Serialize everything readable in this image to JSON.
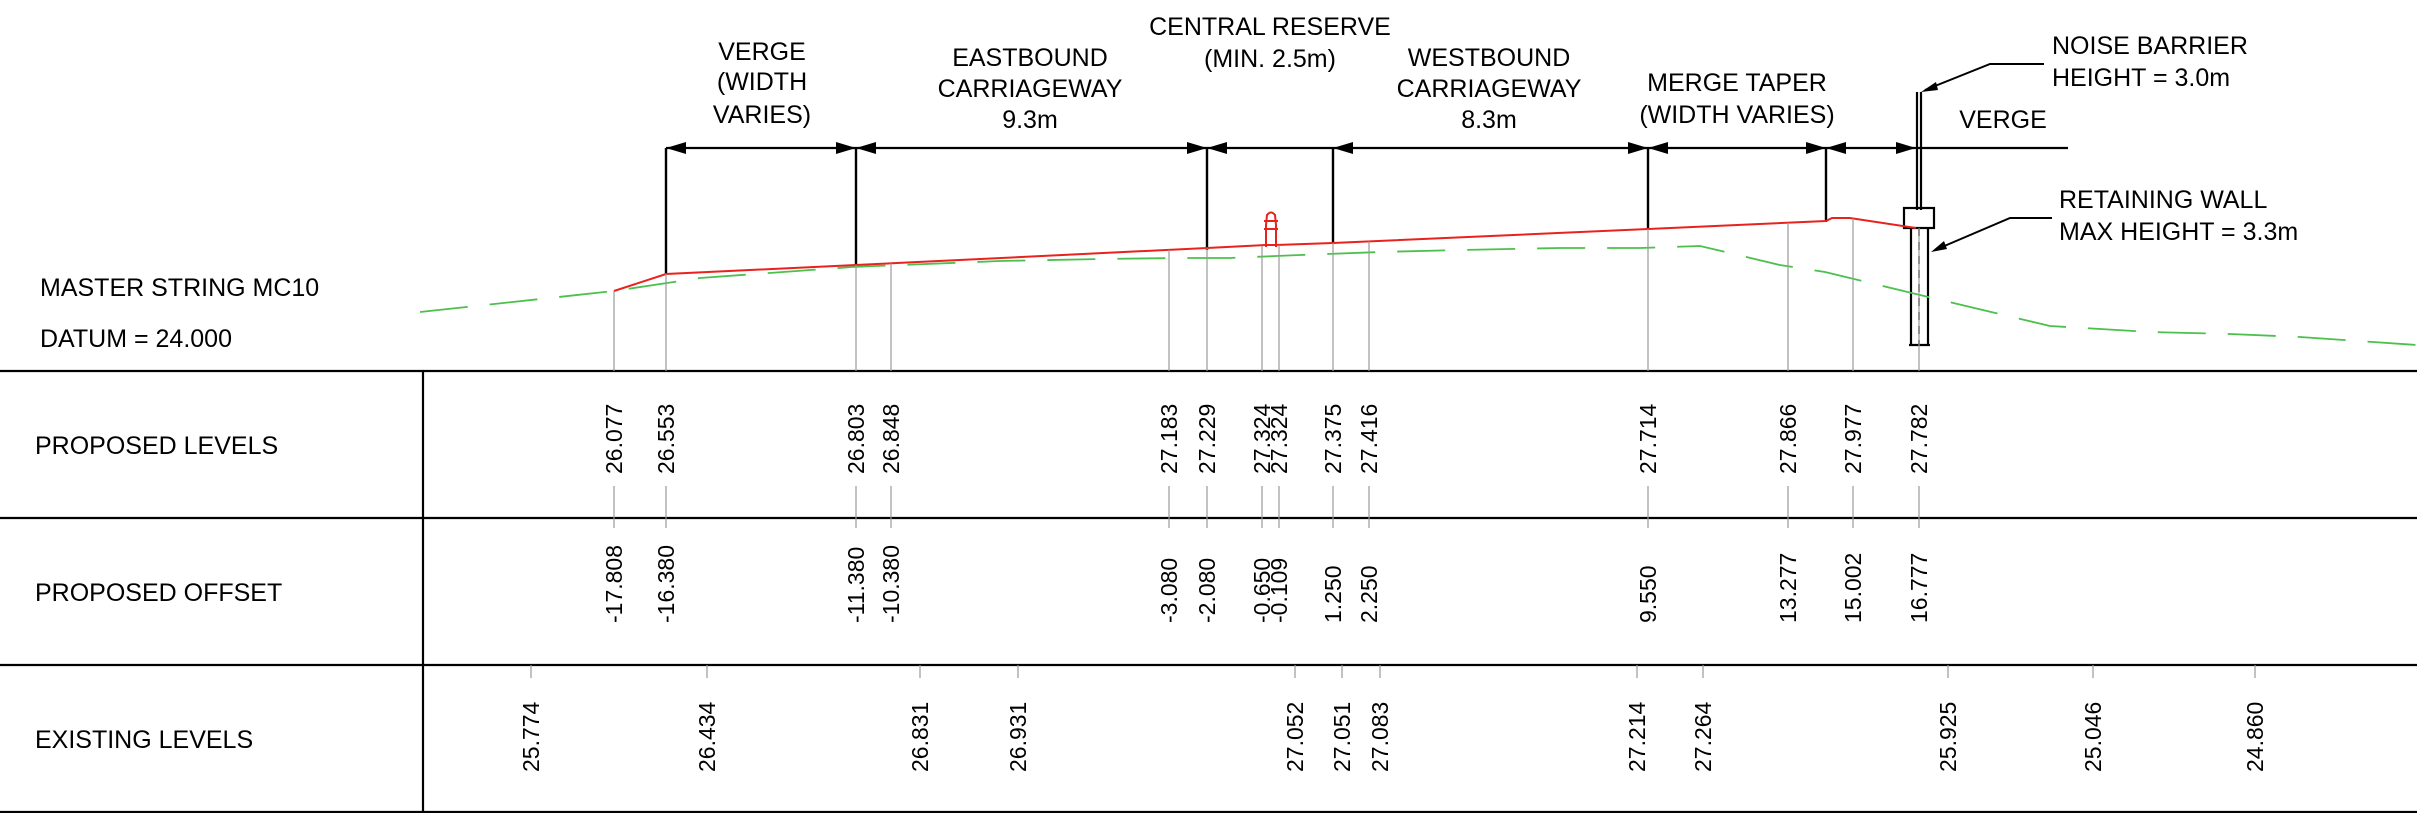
{
  "section_labels": {
    "verge_left": [
      "VERGE",
      "(WIDTH",
      "VARIES)"
    ],
    "eastbound": [
      "EASTBOUND",
      "CARRIAGEWAY",
      "9.3m"
    ],
    "central_reserve": [
      "CENTRAL RESERVE",
      "(MIN. 2.5m)"
    ],
    "westbound": [
      "WESTBOUND",
      "CARRIAGEWAY",
      "8.3m"
    ],
    "merge_taper": [
      "MERGE TAPER",
      "(WIDTH VARIES)"
    ],
    "verge_right": "VERGE"
  },
  "callouts": {
    "noise_barrier": [
      "NOISE BARRIER",
      "HEIGHT = 3.0m"
    ],
    "retaining_wall": [
      "RETAINING WALL",
      "MAX HEIGHT = 3.3m"
    ]
  },
  "header": {
    "master_string": "MASTER STRING MC10",
    "datum": "DATUM = 24.000"
  },
  "rows": {
    "proposed_levels": "PROPOSED LEVELS",
    "proposed_offset": "PROPOSED OFFSET",
    "existing_levels": "EXISTING LEVELS"
  },
  "colors": {
    "proposed_line": "#e8221c",
    "existing_line": "#4cc04c",
    "linework": "#000000",
    "ticks": "#9a9a9a"
  },
  "chart_data": {
    "type": "cross-section",
    "datum": 24.0,
    "proposed_points": [
      {
        "offset": -17.808,
        "level": 26.077
      },
      {
        "offset": -16.38,
        "level": 26.553
      },
      {
        "offset": -11.38,
        "level": 26.803
      },
      {
        "offset": -10.38,
        "level": 26.848
      },
      {
        "offset": -3.08,
        "level": 27.183
      },
      {
        "offset": -2.08,
        "level": 27.229
      },
      {
        "offset": -0.65,
        "level": 27.324
      },
      {
        "offset": -0.109,
        "level": 27.324
      },
      {
        "offset": 1.25,
        "level": 27.375
      },
      {
        "offset": 2.25,
        "level": 27.416
      },
      {
        "offset": 9.55,
        "level": 27.714
      },
      {
        "offset": 13.277,
        "level": 27.866
      },
      {
        "offset": 15.002,
        "level": 27.977
      },
      {
        "offset": 16.777,
        "level": 27.782
      }
    ],
    "proposed_levels": [
      "26.077",
      "26.553",
      "26.803",
      "26.848",
      "27.183",
      "27.229",
      "27.324",
      "27.324",
      "27.375",
      "27.416",
      "27.714",
      "27.866",
      "27.977",
      "27.782"
    ],
    "proposed_offsets": [
      "-17.808",
      "-16.380",
      "-11.380",
      "-10.380",
      "-3.080",
      "-2.080",
      "-0.650",
      "-0.109",
      "1.250",
      "2.250",
      "9.550",
      "13.277",
      "15.002",
      "16.777"
    ],
    "existing_levels": [
      "25.774",
      "26.434",
      "26.831",
      "26.931",
      "27.052",
      "27.051",
      "27.083",
      "27.214",
      "27.264",
      "25.925",
      "25.046",
      "24.860"
    ]
  }
}
